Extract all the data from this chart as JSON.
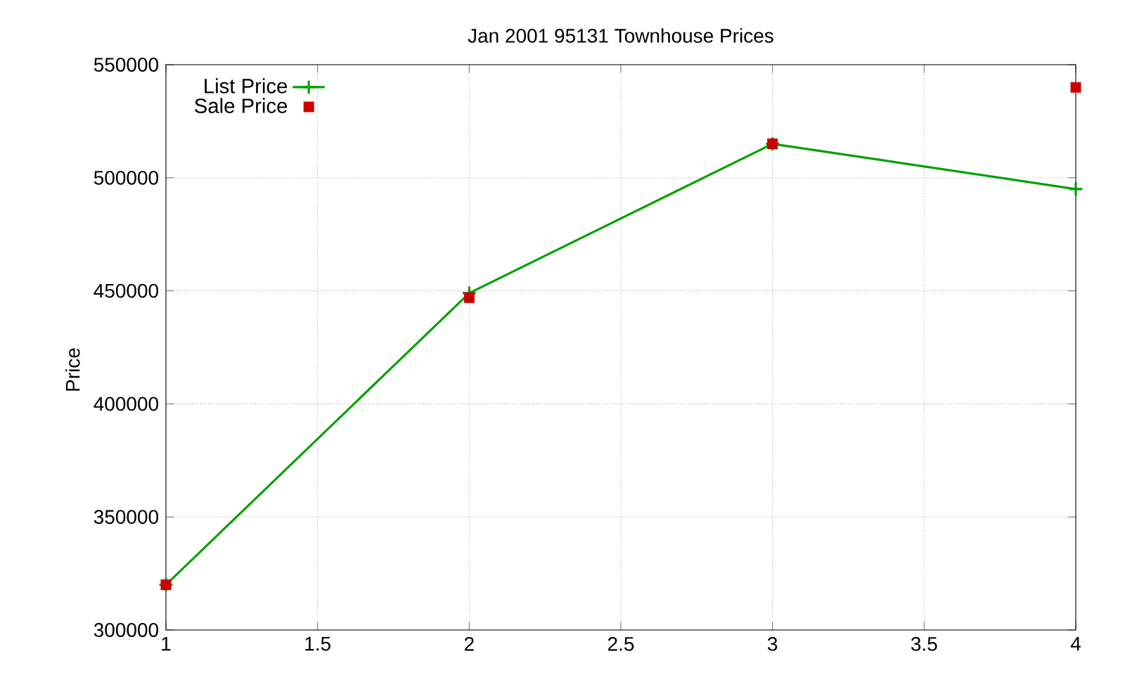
{
  "chart_data": {
    "type": "line",
    "title": "Jan 2001 95131 Townhouse Prices",
    "ylabel": "Price",
    "x": [
      1,
      2,
      3,
      4
    ],
    "series": [
      {
        "name": "List Price",
        "marker": "cross",
        "color": "#00a000",
        "values": [
          320000,
          449000,
          515000,
          495000
        ]
      },
      {
        "name": "Sale Price",
        "type": "scatter",
        "marker": "square",
        "color": "#cc0000",
        "values": [
          320000,
          447000,
          515000,
          540000
        ]
      }
    ],
    "xlim": [
      1,
      4
    ],
    "xticks": [
      1,
      1.5,
      2,
      2.5,
      3,
      3.5,
      4
    ],
    "ylim": [
      300000,
      550000
    ],
    "yticks": [
      300000,
      350000,
      400000,
      450000,
      500000,
      550000
    ],
    "grid": true,
    "legend": "top left"
  }
}
